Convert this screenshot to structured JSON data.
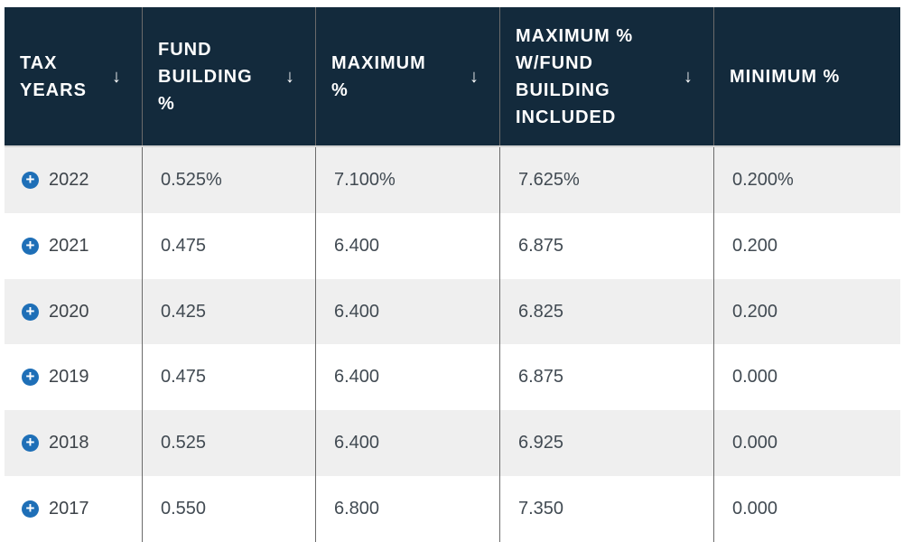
{
  "table": {
    "sort_arrow_icon": "↓",
    "expand_icon": "+",
    "columns": [
      {
        "key": "tax-years",
        "field": "year",
        "label": "TAX\nYEARS",
        "sortable": true
      },
      {
        "key": "fund-building-pct",
        "field": "fund_building",
        "label": "FUND\nBUILDING\n%",
        "sortable": true
      },
      {
        "key": "maximum-pct",
        "field": "maximum",
        "label": "MAXIMUM\n%",
        "sortable": true
      },
      {
        "key": "maximum-with-fund-pct",
        "field": "maximum_with_fund",
        "label": "MAXIMUM %\nW/FUND\nBUILDING\nINCLUDED",
        "sortable": true
      },
      {
        "key": "minimum-pct",
        "field": "minimum",
        "label": "MINIMUM %",
        "sortable": false
      }
    ],
    "rows": [
      {
        "year": "2022",
        "fund_building": "0.525%",
        "maximum": "7.100%",
        "maximum_with_fund": "7.625%",
        "minimum": "0.200%"
      },
      {
        "year": "2021",
        "fund_building": "0.475",
        "maximum": "6.400",
        "maximum_with_fund": "6.875",
        "minimum": "0.200"
      },
      {
        "year": "2020",
        "fund_building": "0.425",
        "maximum": "6.400",
        "maximum_with_fund": "6.825",
        "minimum": "0.200"
      },
      {
        "year": "2019",
        "fund_building": "0.475",
        "maximum": "6.400",
        "maximum_with_fund": "6.875",
        "minimum": "0.000"
      },
      {
        "year": "2018",
        "fund_building": "0.525",
        "maximum": "6.400",
        "maximum_with_fund": "6.925",
        "minimum": "0.000"
      },
      {
        "year": "2017",
        "fund_building": "0.550",
        "maximum": "6.800",
        "maximum_with_fund": "7.350",
        "minimum": "0.000"
      }
    ],
    "colors": {
      "header_bg": "#132a3c",
      "header_text": "#ffffff",
      "row_alt_bg": "#efefef",
      "row_bg": "#ffffff",
      "body_text": "#414a52",
      "expand_button": "#1e6fb7",
      "column_divider": "#6b6b6b",
      "header_bottom_border": "#d4d4d4"
    }
  }
}
